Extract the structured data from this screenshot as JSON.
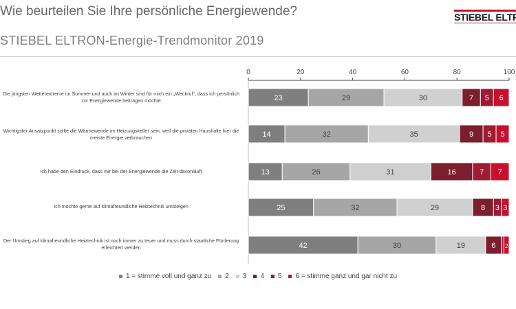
{
  "header": {
    "title": "Wie beurteilen Sie Ihre persönliche Energiewende?",
    "subtitle": "STIEBEL ELTRON-Energie-Trendmonitor 2019",
    "logo_text": "STIEBEL ELTRON"
  },
  "colors": {
    "s1": "#7f7f7f",
    "s2": "#a6a6a6",
    "s3": "#d0d0d0",
    "s4": "#7b1e2d",
    "s5": "#9e1b32",
    "s6": "#c8102e",
    "text": "#404040",
    "axis": "#404040"
  },
  "chart_data": {
    "type": "bar",
    "orientation": "horizontal",
    "stacked": true,
    "xlim": [
      0,
      100
    ],
    "xticks": [
      "0",
      "20",
      "40",
      "60",
      "80",
      "100"
    ],
    "categories": [
      "Die jüngsten Wetterextreme im Sommer und auch im Winter sind für mich ein „Weckruf“, dass ich persönlich zur Energiewende beitragen möchte",
      "Wichtigster Ansatzpunkt sollte die Wärmewende im Heizungskeller sein, weil die privaten Haushalte hier die meiste Energie verbrauchen",
      "Ich habe den Eindruck, dass mir bei der Energiewende die Zeit davonläuft",
      "Ich möchte gerne auf klimafreundliche Heiztechnik umsteigen",
      "Der Umstieg auf klimafreundliche Heiztechnik ist noch immer zu teuer und muss durch staatliche Förderung erleichtert werden"
    ],
    "series": [
      {
        "name": "1 = stimme voll und ganz zu",
        "values": [
          23,
          14,
          13,
          25,
          42
        ]
      },
      {
        "name": "2",
        "values": [
          29,
          32,
          26,
          32,
          30
        ]
      },
      {
        "name": "3",
        "values": [
          30,
          35,
          31,
          29,
          19
        ]
      },
      {
        "name": "4",
        "values": [
          7,
          9,
          16,
          8,
          6
        ]
      },
      {
        "name": "5",
        "values": [
          5,
          5,
          7,
          3,
          1
        ]
      },
      {
        "name": "6 = stimme ganz und gar nicht zu",
        "values": [
          6,
          5,
          7,
          3,
          2
        ]
      }
    ],
    "data_labels": [
      [
        "23",
        "29",
        "30",
        "7",
        "5",
        "6"
      ],
      [
        "14",
        "32",
        "35",
        "9",
        "5",
        "5"
      ],
      [
        "13",
        "26",
        "31",
        "16",
        "7",
        "7"
      ],
      [
        "25",
        "32",
        "29",
        "8",
        "3",
        "3"
      ],
      [
        "42",
        "30",
        "19",
        "6",
        "",
        "2"
      ]
    ],
    "legend_position": "bottom",
    "grid": false
  }
}
